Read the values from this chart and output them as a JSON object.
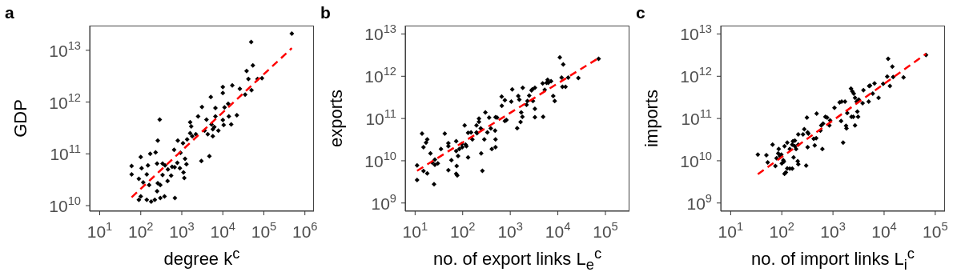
{
  "chart_data": [
    {
      "type": "scatter",
      "title": "a",
      "xlabel": "degree k$^{c}$",
      "ylabel": "GDP",
      "log": "xy",
      "marker": "diamond",
      "xlim": [
        5.7,
        1660000
      ],
      "ylim": [
        7800000000.0,
        30000000000000.0
      ],
      "xticks": [
        {
          "value": 10,
          "label": "10$^{1}$"
        },
        {
          "value": 100,
          "label": "10$^{2}$"
        },
        {
          "value": 1000,
          "label": "10$^{3}$"
        },
        {
          "value": 10000,
          "label": "10$^{4}$"
        },
        {
          "value": 100000,
          "label": "10$^{5}$"
        },
        {
          "value": 1000000,
          "label": "10$^{6}$"
        }
      ],
      "yticks": [
        {
          "value": 10000000000.0,
          "label": "10$^{10}$"
        },
        {
          "value": 100000000000.0,
          "label": "10$^{11}$"
        },
        {
          "value": 1000000000000.0,
          "label": "10$^{12}$"
        },
        {
          "value": 10000000000000.0,
          "label": "10$^{13}$"
        }
      ],
      "series": [
        {
          "type": "scatter",
          "color": "#000000",
          "x": [
            60,
            60,
            100,
            105,
            90,
            90,
            115,
            100,
            140,
            150,
            170,
            160,
            140,
            180,
            220,
            230,
            260,
            290,
            250,
            250,
            260,
            300,
            340,
            340,
            300,
            380,
            390,
            460,
            450,
            550,
            580,
            670,
            650,
            680,
            780,
            800,
            930,
            900,
            1070,
            1100,
            1150,
            1200,
            1300,
            1350,
            1600,
            1700,
            1600,
            1800,
            2200,
            2500,
            3100,
            3000,
            3600,
            4000,
            4300,
            4700,
            5100,
            5300,
            5700,
            5700,
            6200,
            6600,
            6600,
            7800,
            10000,
            10000,
            10000,
            10500,
            11000,
            13500,
            14000,
            17000,
            16000,
            22000,
            26000,
            35000,
            38000,
            42000,
            49000,
            50000,
            54000,
            70000,
            90000,
            480000
          ],
          "values": [
            58000000000.0,
            40000000000.0,
            87000000000.0,
            53000000000.0,
            33000000000.0,
            13000000000.0,
            28000000000.0,
            15000000000.0,
            40000000000.0,
            60000000000.0,
            100000000000.0,
            25000000000.0,
            13000000000.0,
            12000000000.0,
            13000000000.0,
            107000000000.0,
            180000000000.0,
            460000000000.0,
            65000000000.0,
            19000000000.0,
            27000000000.0,
            25000000000.0,
            65000000000.0,
            39000000000.0,
            14000000000.0,
            15000000000.0,
            60000000000.0,
            50000000000.0,
            30000000000.0,
            38000000000.0,
            56000000000.0,
            55000000000.0,
            120000000000.0,
            14000000000.0,
            67000000000.0,
            180000000000.0,
            105000000000.0,
            53000000000.0,
            160000000000.0,
            44000000000.0,
            34000000000.0,
            80000000000.0,
            63000000000.0,
            190000000000.0,
            410000000000.0,
            340000000000.0,
            250000000000.0,
            220000000000.0,
            240000000000.0,
            530000000000.0,
            800000000000.0,
            73000000000.0,
            280000000000.0,
            460000000000.0,
            240000000000.0,
            90000000000.0,
            1250000000000.0,
            370000000000.0,
            300000000000.0,
            220000000000.0,
            330000000000.0,
            770000000000.0,
            530000000000.0,
            280000000000.0,
            1950000000000.0,
            1500000000000.0,
            450000000000.0,
            360000000000.0,
            790000000000.0,
            930000000000.0,
            530000000000.0,
            2100000000000.0,
            370000000000.0,
            560000000000.0,
            1800000000000.0,
            1400000000000.0,
            4000000000000.0,
            2800000000000.0,
            14500000000000.0,
            1700000000000.0,
            5100000000000.0,
            2800000000000.0,
            2900000000000.0,
            21000000000000.0
          ]
        },
        {
          "type": "line",
          "color": "#ff0000",
          "line_style": "dashed",
          "marker": "none",
          "x": [
            60,
            480000
          ],
          "values": [
            14500000000.0,
            11000000000000.0
          ]
        }
      ]
    },
    {
      "type": "scatter",
      "title": "b",
      "xlabel": "no. of export links L$_{e}$$^{c}$",
      "ylabel": "exports",
      "log": "xy",
      "marker": "diamond",
      "xlim": [
        6.2,
        320000
      ],
      "ylim": [
        640000000.0,
        15800000000000.0
      ],
      "xticks": [
        {
          "value": 10,
          "label": "10$^{1}$"
        },
        {
          "value": 100,
          "label": "10$^{2}$"
        },
        {
          "value": 1000,
          "label": "10$^{3}$"
        },
        {
          "value": 10000,
          "label": "10$^{4}$"
        },
        {
          "value": 100000,
          "label": "10$^{5}$"
        }
      ],
      "yticks": [
        {
          "value": 1000000000.0,
          "label": "10$^{9}$"
        },
        {
          "value": 10000000000.0,
          "label": "10$^{10}$"
        },
        {
          "value": 100000000000.0,
          "label": "10$^{11}$"
        },
        {
          "value": 1000000000000.0,
          "label": "10$^{12}$"
        },
        {
          "value": 10000000000000.0,
          "label": "10$^{13}$"
        }
      ],
      "series": [
        {
          "type": "scatter",
          "color": "#000000",
          "x": [
            11,
            11,
            14,
            15,
            15,
            17,
            18,
            18,
            21,
            23,
            25,
            26,
            26,
            30,
            35,
            42,
            50,
            50,
            50,
            58,
            73,
            73,
            75,
            73,
            77,
            80,
            85,
            95,
            98,
            110,
            115,
            120,
            130,
            130,
            150,
            160,
            195,
            195,
            200,
            220,
            220,
            245,
            240,
            260,
            285,
            300,
            330,
            360,
            390,
            410,
            480,
            490,
            490,
            490,
            530,
            660,
            665,
            770,
            770,
            830,
            1050,
            1100,
            1400,
            1470,
            1650,
            1550,
            1700,
            1800,
            1830,
            2200,
            2300,
            2500,
            2800,
            2900,
            3000,
            3300,
            3300,
            3300,
            4800,
            4900,
            5300,
            5800,
            6100,
            6300,
            7200,
            8000,
            8600,
            11000,
            12000,
            12500,
            13000,
            14500,
            16500,
            27000,
            72000
          ],
          "values": [
            7800000000.0,
            3500000000.0,
            44000000000.0,
            21000000000.0,
            5700000000.0,
            27000000000.0,
            32000000000.0,
            5000000000.0,
            15000000000.0,
            9000000000.0,
            2800000000.0,
            10700000000.0,
            8000000000.0,
            8700000000.0,
            19000000000.0,
            44000000000.0,
            26000000000.0,
            22000000000.0,
            6000000000.0,
            10300000000.0,
            29000000000.0,
            17000000000.0,
            7500000000.0,
            4900000000.0,
            4500000000.0,
            13000000000.0,
            19000000000.0,
            25000000000.0,
            21000000000.0,
            69000000000.0,
            24000000000.0,
            22000000000.0,
            46000000000.0,
            12000000000.0,
            47000000000.0,
            32000000000.0,
            69000000000.0,
            47000000000.0,
            45000000000.0,
            100000000000.0,
            84000000000.0,
            15000000000.0,
            58000000000.0,
            5800000000.0,
            32000000000.0,
            140000000000.0,
            47000000000.0,
            105000000000.0,
            58000000000.0,
            19000000000.0,
            52000000000.0,
            107000000000.0,
            32000000000.0,
            21000000000.0,
            105000000000.0,
            330000000000.0,
            200000000000.0,
            270000000000.0,
            87000000000.0,
            92000000000.0,
            250000000000.0,
            490000000000.0,
            59000000000.0,
            340000000000.0,
            83000000000.0,
            280000000000.0,
            140000000000.0,
            110000000000.0,
            530000000000.0,
            210000000000.0,
            260000000000.0,
            350000000000.0,
            460000000000.0,
            490000000000.0,
            260000000000.0,
            530000000000.0,
            170000000000.0,
            107000000000.0,
            680000000000.0,
            110000000000.0,
            480000000000.0,
            700000000000.0,
            820000000000.0,
            700000000000.0,
            760000000000.0,
            340000000000.0,
            260000000000.0,
            2800000000000.0,
            930000000000.0,
            560000000000.0,
            1900000000000.0,
            560000000000.0,
            930000000000.0,
            910000000000.0,
            2600000000000.0
          ]
        },
        {
          "type": "line",
          "color": "#ff0000",
          "line_style": "dashed",
          "marker": "none",
          "x": [
            11,
            72000
          ],
          "values": [
            5800000000.0,
            2700000000000.0
          ]
        }
      ]
    },
    {
      "type": "scatter",
      "title": "c",
      "xlabel": "no. of import links L$_{i}$$^{c}$",
      "ylabel": "imports",
      "log": "xy",
      "marker": "diamond",
      "xlim": [
        6.4,
        155000
      ],
      "ylim": [
        640000000.0,
        15800000000000.0
      ],
      "xticks": [
        {
          "value": 10,
          "label": "10$^{1}$"
        },
        {
          "value": 100,
          "label": "10$^{2}$"
        },
        {
          "value": 1000,
          "label": "10$^{3}$"
        },
        {
          "value": 10000,
          "label": "10$^{4}$"
        },
        {
          "value": 100000,
          "label": "10$^{5}$"
        }
      ],
      "yticks": [
        {
          "value": 1000000000.0,
          "label": "10$^{9}$"
        },
        {
          "value": 10000000000.0,
          "label": "10$^{10}$"
        },
        {
          "value": 100000000000.0,
          "label": "10$^{11}$"
        },
        {
          "value": 1000000000000.0,
          "label": "10$^{12}$"
        },
        {
          "value": 10000000000000.0,
          "label": "10$^{13}$"
        }
      ],
      "series": [
        {
          "type": "scatter",
          "color": "#000000",
          "x": [
            34,
            50,
            53,
            66,
            75,
            79,
            85,
            87,
            92,
            98,
            100,
            107,
            110,
            113,
            120,
            113,
            128,
            128,
            143,
            143,
            160,
            160,
            165,
            170,
            180,
            180,
            190,
            205,
            210,
            210,
            210,
            260,
            275,
            300,
            310,
            320,
            330,
            320,
            420,
            440,
            470,
            480,
            570,
            590,
            620,
            640,
            710,
            770,
            850,
            880,
            1070,
            1350,
            1440,
            1480,
            1580,
            1720,
            1800,
            1840,
            1900,
            2250,
            2300,
            2400,
            2500,
            2550,
            2700,
            2700,
            2900,
            3000,
            3100,
            3200,
            3800,
            3950,
            5000,
            5100,
            5300,
            6000,
            6500,
            7800,
            9600,
            11500,
            12000,
            13000,
            14500,
            15000,
            24000,
            66000
          ],
          "values": [
            14000000000.0,
            13500000000.0,
            9100000000.0,
            24000000000.0,
            7500000000.0,
            11500000000.0,
            15000000000.0,
            19000000000.0,
            13000000000.0,
            14000000000.0,
            8700000000.0,
            10300000000.0,
            9600000000.0,
            4900000000.0,
            5300000000.0,
            22000000000.0,
            27000000000.0,
            6600000000.0,
            19000000000.0,
            6500000000.0,
            6500000000.0,
            24000000000.0,
            29000000000.0,
            12000000000.0,
            30000000000.0,
            22000000000.0,
            19000000000.0,
            9800000000.0,
            24000000000.0,
            8300000000.0,
            42000000000.0,
            42000000000.0,
            56000000000.0,
            7700000000.0,
            105000000000.0,
            47000000000.0,
            44000000000.0,
            21000000000.0,
            33000000000.0,
            23000000000.0,
            34000000000.0,
            130000000000.0,
            52000000000.0,
            69000000000.0,
            19000000000.0,
            76000000000.0,
            110000000000.0,
            105000000000.0,
            69000000000.0,
            90000000000.0,
            180000000000.0,
            240000000000.0,
            87000000000.0,
            250000000000.0,
            27000000000.0,
            250000000000.0,
            67000000000.0,
            58000000000.0,
            135000000000.0,
            510000000000.0,
            110000000000.0,
            440000000000.0,
            110000000000.0,
            390000000000.0,
            310000000000.0,
            69000000000.0,
            250000000000.0,
            145000000000.0,
            110000000000.0,
            280000000000.0,
            230000000000.0,
            470000000000.0,
            250000000000.0,
            590000000000.0,
            600000000000.0,
            390000000000.0,
            680000000000.0,
            310000000000.0,
            660000000000.0,
            980000000000.0,
            2600000000000.0,
            590000000000.0,
            1700000000000.0,
            960000000000.0,
            940000000000.0,
            3200000000000.0
          ]
        },
        {
          "type": "line",
          "color": "#ff0000",
          "line_style": "dashed",
          "marker": "none",
          "x": [
            34,
            66000
          ],
          "values": [
            4800000000.0,
            3400000000000.0
          ]
        }
      ]
    }
  ]
}
